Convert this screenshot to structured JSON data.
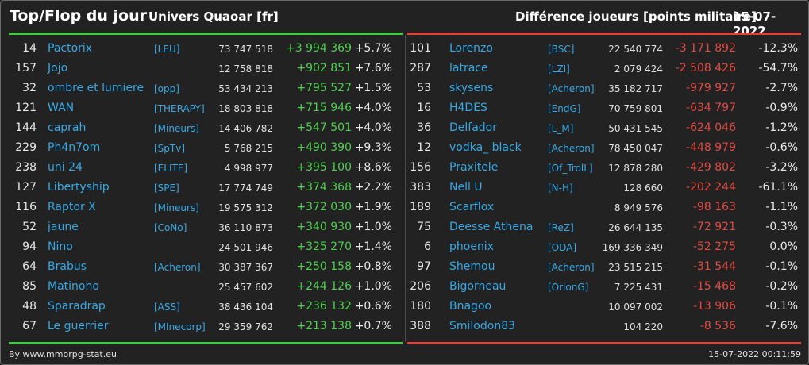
{
  "header": {
    "title": "Top/Flop du jour",
    "universe": "Univers Quaoar [fr]",
    "diff_label": "Différence joueurs [points militaire]",
    "date": "15-07-2022"
  },
  "colors": {
    "positive": "#4fd04f",
    "negative": "#e24a42",
    "link": "#35a9e6"
  },
  "top": [
    {
      "rank": "14",
      "name": "Pactorix",
      "alliance": "[LEU]",
      "points": "73 747 518",
      "diff": "+3 994 369",
      "pct": "+5.7%"
    },
    {
      "rank": "157",
      "name": "Jojo",
      "alliance": "",
      "points": "12 758 818",
      "diff": "+902 851",
      "pct": "+7.6%"
    },
    {
      "rank": "32",
      "name": "ombre et lumiere",
      "alliance": "[opp]",
      "points": "53 434 213",
      "diff": "+795 527",
      "pct": "+1.5%"
    },
    {
      "rank": "121",
      "name": "WAN",
      "alliance": "[THERAPY]",
      "points": "18 803 818",
      "diff": "+715 946",
      "pct": "+4.0%"
    },
    {
      "rank": "144",
      "name": "caprah",
      "alliance": "[Mineurs]",
      "points": "14 406 782",
      "diff": "+547 501",
      "pct": "+4.0%"
    },
    {
      "rank": "229",
      "name": "Ph4n7om",
      "alliance": "[SpTv]",
      "points": "5 768 215",
      "diff": "+490 390",
      "pct": "+9.3%"
    },
    {
      "rank": "238",
      "name": "uni 24",
      "alliance": "[ELITE]",
      "points": "4 998 977",
      "diff": "+395 100",
      "pct": "+8.6%"
    },
    {
      "rank": "127",
      "name": "Libertyship",
      "alliance": "[SPE]",
      "points": "17 774 749",
      "diff": "+374 368",
      "pct": "+2.2%"
    },
    {
      "rank": "116",
      "name": "Raptor X",
      "alliance": "[Mineurs]",
      "points": "19 575 312",
      "diff": "+372 030",
      "pct": "+1.9%"
    },
    {
      "rank": "52",
      "name": "jaune",
      "alliance": "[CoNo]",
      "points": "36 110 873",
      "diff": "+340 930",
      "pct": "+1.0%"
    },
    {
      "rank": "94",
      "name": "Nino",
      "alliance": "",
      "points": "24 501 946",
      "diff": "+325 270",
      "pct": "+1.4%"
    },
    {
      "rank": "64",
      "name": "Brabus",
      "alliance": "[Acheron]",
      "points": "30 387 367",
      "diff": "+250 158",
      "pct": "+0.8%"
    },
    {
      "rank": "85",
      "name": "Matinono",
      "alliance": "",
      "points": "25 457 602",
      "diff": "+244 126",
      "pct": "+1.0%"
    },
    {
      "rank": "48",
      "name": "Sparadrap",
      "alliance": "[ASS]",
      "points": "38 436 104",
      "diff": "+236 132",
      "pct": "+0.6%"
    },
    {
      "rank": "67",
      "name": "Le guerrier",
      "alliance": "[MInecorp]",
      "points": "29 359 762",
      "diff": "+213 138",
      "pct": "+0.7%"
    }
  ],
  "flop": [
    {
      "rank": "101",
      "name": "Lorenzo",
      "alliance": "[BSC]",
      "points": "22 540 774",
      "diff": "-3 171 892",
      "pct": "-12.3%"
    },
    {
      "rank": "287",
      "name": "latrace",
      "alliance": "[LZI]",
      "points": "2 079 424",
      "diff": "-2 508 426",
      "pct": "-54.7%"
    },
    {
      "rank": "53",
      "name": "skysens",
      "alliance": "[Acheron]",
      "points": "35 182 717",
      "diff": "-979 927",
      "pct": "-2.7%"
    },
    {
      "rank": "16",
      "name": "H4DES",
      "alliance": "[EndG]",
      "points": "70 759 801",
      "diff": "-634 797",
      "pct": "-0.9%"
    },
    {
      "rank": "36",
      "name": "Delfador",
      "alliance": "[L_M]",
      "points": "50 431 545",
      "diff": "-624 046",
      "pct": "-1.2%"
    },
    {
      "rank": "12",
      "name": "vodka_ black",
      "alliance": "[Acheron]",
      "points": "78 450 047",
      "diff": "-448 979",
      "pct": "-0.6%"
    },
    {
      "rank": "156",
      "name": "Praxitele",
      "alliance": "[Of_TrolL]",
      "points": "12 878 280",
      "diff": "-429 802",
      "pct": "-3.2%"
    },
    {
      "rank": "383",
      "name": "Nell U",
      "alliance": "[N-H]",
      "points": "128 660",
      "diff": "-202 244",
      "pct": "-61.1%"
    },
    {
      "rank": "189",
      "name": "Scarflox",
      "alliance": "",
      "points": "8 949 576",
      "diff": "-98 163",
      "pct": "-1.1%"
    },
    {
      "rank": "75",
      "name": "Deesse Athena",
      "alliance": "[ReZ]",
      "points": "26 644 135",
      "diff": "-72 921",
      "pct": "-0.3%"
    },
    {
      "rank": "6",
      "name": "phoenix",
      "alliance": "[ODA]",
      "points": "169 336 349",
      "diff": "-52 275",
      "pct": "0.0%"
    },
    {
      "rank": "97",
      "name": "Shemou",
      "alliance": "[Acheron]",
      "points": "23 515 215",
      "diff": "-31 544",
      "pct": "-0.1%"
    },
    {
      "rank": "206",
      "name": "Bigorneau",
      "alliance": "[OrionG]",
      "points": "7 225 431",
      "diff": "-15 468",
      "pct": "-0.2%"
    },
    {
      "rank": "180",
      "name": "Bnagoo",
      "alliance": "",
      "points": "10 097 002",
      "diff": "-13 906",
      "pct": "-0.1%"
    },
    {
      "rank": "388",
      "name": "Smilodon83",
      "alliance": "",
      "points": "104 220",
      "diff": "-8 536",
      "pct": "-7.6%"
    }
  ],
  "footer": {
    "source": "By www.mmorpg-stat.eu",
    "timestamp": "15-07-2022 00:11:59"
  }
}
